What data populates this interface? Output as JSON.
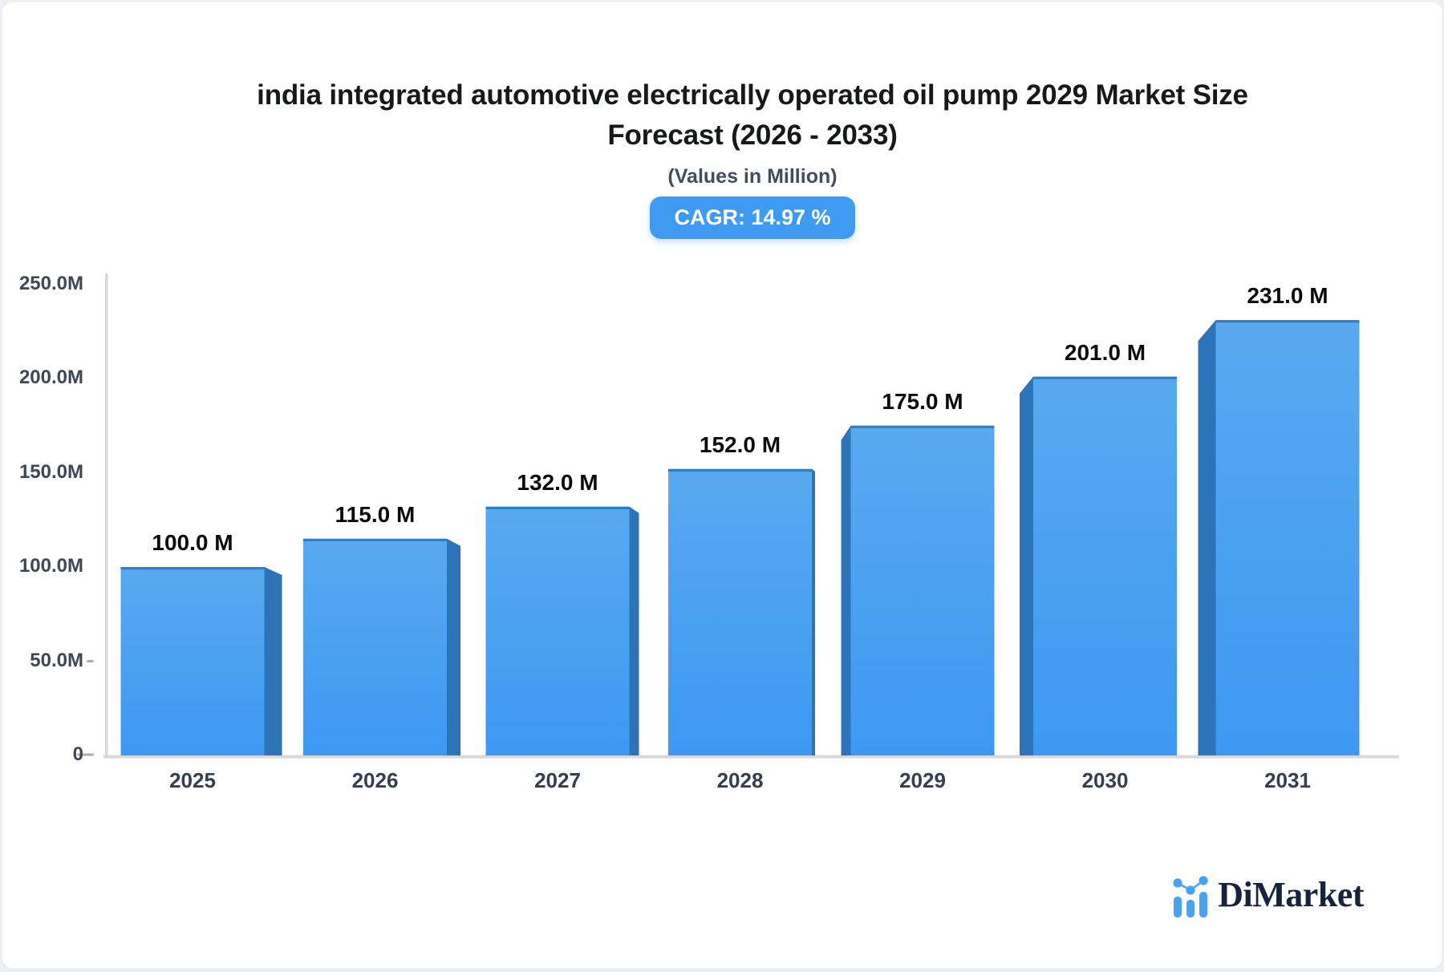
{
  "header": {
    "title_line1": "india integrated automotive electrically operated oil pump 2029 Market Size",
    "title_line2": "Forecast (2026 - 2033)",
    "subtitle": "(Values in Million)",
    "cagr_label": "CAGR: 14.97 %"
  },
  "chart_data": {
    "type": "bar",
    "title": "india integrated automotive electrically operated oil pump 2029 Market Size Forecast (2026 - 2033)",
    "subtitle": "(Values in Million)",
    "cagr_percent": 14.97,
    "categories": [
      "2025",
      "2026",
      "2027",
      "2028",
      "2029",
      "2030",
      "2031"
    ],
    "values": [
      100,
      115,
      132,
      152,
      175,
      201,
      231
    ],
    "value_labels": [
      "100.0 M",
      "115.0 M",
      "132.0 M",
      "152.0 M",
      "175.0 M",
      "201.0 M",
      "231.0 M"
    ],
    "unit": "Million",
    "ytick_values": [
      0,
      50,
      100,
      150,
      200,
      250
    ],
    "ytick_labels": [
      "0",
      "50.0M",
      "100.0M",
      "150.0M",
      "200.0M",
      "250.0M"
    ],
    "ylim": [
      0,
      250
    ],
    "grid": false,
    "legend_position": "none",
    "bar_face_color_top": "#58a9ef",
    "bar_face_color_bottom": "#3e98f2",
    "bar_side_color": "#2d73b7",
    "bar_top_edge_color": "#2f7ec9"
  },
  "branding": {
    "logo_text": "DiMarket",
    "logo_icon": "mini-bar-chart-icon",
    "logo_blue": "#4aa2f5"
  },
  "colors": {
    "badge_bg": "#3f9bf2",
    "axis_line": "#d6d9de",
    "tick": "#a9afb8"
  }
}
